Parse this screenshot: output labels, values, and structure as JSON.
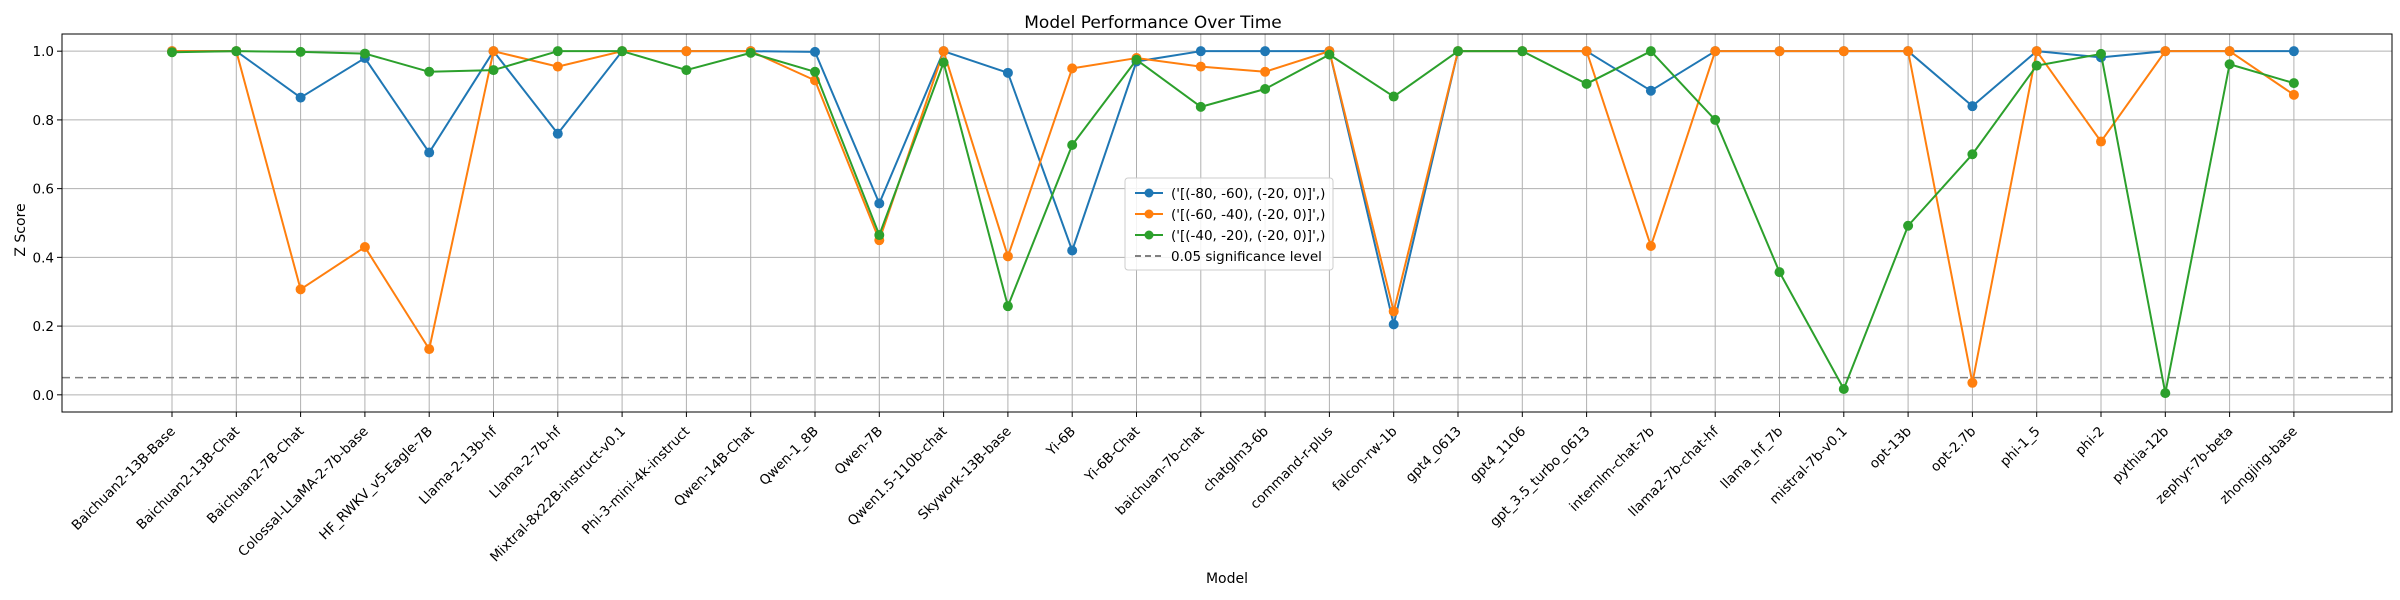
{
  "chart_data": {
    "type": "line",
    "title": "Model Performance Over Time",
    "xlabel": "Model",
    "ylabel": "Z Score",
    "ylim": [
      -0.05,
      1.05
    ],
    "yticks": [
      "0.0",
      "0.2",
      "0.4",
      "0.6",
      "0.8",
      "1.0"
    ],
    "grid": true,
    "legend_position": "center",
    "categories": [
      "Baichuan2-13B-Base",
      "Baichuan2-13B-Chat",
      "Baichuan2-7B-Chat",
      "Colossal-LLaMA-2-7b-base",
      "HF_RWKV_v5-Eagle-7B",
      "Llama-2-13b-hf",
      "Llama-2-7b-hf",
      "Mixtral-8x22B-instruct-v0.1",
      "Phi-3-mini-4k-instruct",
      "Qwen-14B-Chat",
      "Qwen-1_8B",
      "Qwen-7B",
      "Qwen1.5-110b-chat",
      "Skywork-13B-base",
      "Yi-6B",
      "Yi-6B-Chat",
      "baichuan-7b-chat",
      "chatglm3-6b",
      "command-r-plus",
      "falcon-rw-1b",
      "gpt4_0613",
      "gpt4_1106",
      "gpt_3.5_turbo_0613",
      "internlm-chat-7b",
      "llama2-7b-chat-hf",
      "llama_hf_7b",
      "mistral-7b-v0.1",
      "opt-13b",
      "opt-2.7b",
      "phi-1_5",
      "phi-2",
      "pythia-12b",
      "zephyr-7b-beta",
      "zhongjing-base"
    ],
    "series": [
      {
        "name": "('[(-80, -60), (-20, 0)]',)",
        "color": "#1f77b4",
        "values": [
          1.0,
          1.0,
          0.865,
          0.98,
          0.705,
          1.0,
          0.76,
          1.0,
          1.0,
          1.0,
          0.998,
          0.557,
          1.0,
          0.937,
          0.42,
          0.97,
          1.0,
          1.0,
          1.0,
          0.205,
          1.0,
          1.0,
          1.0,
          0.885,
          1.0,
          1.0,
          1.0,
          1.0,
          0.84,
          1.0,
          0.982,
          1.0,
          1.0,
          1.0
        ]
      },
      {
        "name": "('[(-60, -40), (-20, 0)]',)",
        "color": "#ff7f0e",
        "values": [
          1.0,
          1.0,
          0.307,
          0.43,
          0.133,
          1.0,
          0.955,
          1.0,
          1.0,
          1.0,
          0.915,
          0.45,
          1.0,
          0.403,
          0.95,
          0.98,
          0.955,
          0.94,
          1.0,
          0.243,
          1.0,
          1.0,
          1.0,
          0.433,
          1.0,
          1.0,
          1.0,
          1.0,
          0.035,
          1.0,
          0.737,
          1.0,
          1.0,
          0.873
        ]
      },
      {
        "name": "('[(-40, -20), (-20, 0)]',)",
        "color": "#2ca02c",
        "values": [
          0.997,
          1.0,
          0.998,
          0.993,
          0.94,
          0.945,
          1.0,
          1.0,
          0.945,
          0.995,
          0.94,
          0.465,
          0.967,
          0.258,
          0.727,
          0.975,
          0.838,
          0.89,
          0.99,
          0.868,
          1.0,
          1.0,
          0.905,
          1.0,
          0.8,
          0.357,
          0.017,
          0.492,
          0.7,
          0.958,
          0.992,
          0.005,
          0.962,
          0.907
        ]
      }
    ],
    "reference_lines": [
      {
        "name": "0.05 significance level",
        "y": 0.05,
        "color": "#808080",
        "style": "dashed"
      }
    ]
  }
}
